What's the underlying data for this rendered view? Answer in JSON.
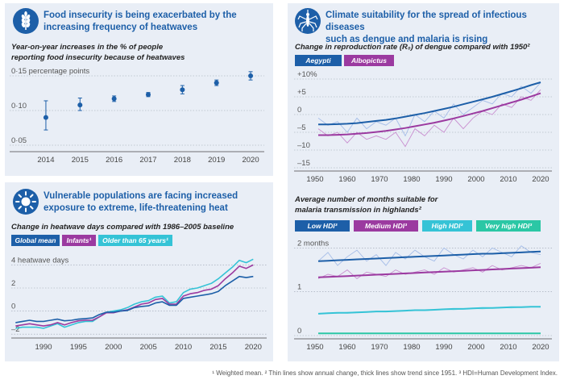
{
  "panels": {
    "food": {
      "title_l1": "Food insecurity is being exacerbated by the",
      "title_l2": "increasing frequency of heatwaves",
      "sub_l1": "Year-on-year increases in the % of people",
      "sub_l2": "reporting food insecurity because of heatwaves",
      "icon": "wheat-icon"
    },
    "climate": {
      "title_l1": "Climate suitability for the spread of infectious diseases",
      "title_l2": "such as dengue and malaria is rising",
      "sub": "Change in reproduction rate (R₀) of dengue compared with 1950²",
      "sub2_l1": "Average number of months suitable for",
      "sub2_l2": "malaria transmission in highlands²",
      "icon": "mosquito-icon"
    },
    "heat": {
      "title_l1": "Vulnerable populations are facing increased",
      "title_l2": "exposure to extreme, life-threatening heat",
      "sub": "Change in heatwave days compared with 1986–2005 baseline",
      "icon": "sun-icon"
    }
  },
  "footnote": "¹ Weighted mean. ² Thin lines show annual change, thick lines show trend since 1951. ³ HDI=Human Development Index.",
  "colors": {
    "dark_blue": "#1d5fa8",
    "purple": "#9b3aa0",
    "cyan": "#35c3d6",
    "teal": "#2bc7a5",
    "light_purple": "#c98fd0",
    "light_blue": "#a5bde8"
  },
  "chart_data": [
    {
      "type": "scatter",
      "name": "food-insecurity",
      "x": [
        2014,
        2015,
        2016,
        2017,
        2018,
        2019,
        2020
      ],
      "y": [
        0.09,
        0.108,
        0.117,
        0.123,
        0.13,
        0.14,
        0.15
      ],
      "err_low": [
        0.072,
        0.1,
        0.113,
        0.12,
        0.124,
        0.136,
        0.144
      ],
      "err_high": [
        0.114,
        0.118,
        0.121,
        0.126,
        0.136,
        0.144,
        0.156
      ],
      "ylim": [
        0.05,
        0.15
      ],
      "ytick_labels": [
        "0·15 percentage points",
        "0·10",
        "0·05"
      ],
      "yticks": [
        0.15,
        0.1,
        0.05
      ],
      "xtick_labels": [
        "2014",
        "2015",
        "2016",
        "2017",
        "2018",
        "2019",
        "2020"
      ]
    },
    {
      "type": "line",
      "name": "heatwave-days",
      "x": [
        1986,
        1987,
        1988,
        1989,
        1990,
        1991,
        1992,
        1993,
        1994,
        1995,
        1996,
        1997,
        1998,
        1999,
        2000,
        2001,
        2002,
        2003,
        2004,
        2005,
        2006,
        2007,
        2008,
        2009,
        2010,
        2011,
        2012,
        2013,
        2014,
        2015,
        2016,
        2017,
        2018,
        2019,
        2020
      ],
      "legend": [
        "Global mean",
        "Infants¹",
        "Older than 65 years¹"
      ],
      "series": [
        {
          "name": "Global mean",
          "color": "#1d5fa8",
          "values": [
            -1.0,
            -0.9,
            -0.8,
            -0.9,
            -0.9,
            -0.8,
            -0.7,
            -0.85,
            -0.8,
            -0.7,
            -0.65,
            -0.6,
            -0.3,
            -0.1,
            -0.1,
            0.0,
            0.05,
            0.3,
            0.4,
            0.45,
            0.7,
            0.8,
            0.5,
            0.5,
            1.1,
            1.2,
            1.3,
            1.4,
            1.5,
            1.7,
            2.2,
            2.6,
            3.0,
            2.9,
            3.0
          ]
        },
        {
          "name": "Infants¹",
          "color": "#9b3aa0",
          "values": [
            -1.3,
            -1.2,
            -1.1,
            -1.2,
            -1.3,
            -1.2,
            -1.0,
            -1.2,
            -1.0,
            -0.85,
            -0.8,
            -0.8,
            -0.5,
            -0.15,
            -0.15,
            0.0,
            0.1,
            0.35,
            0.6,
            0.7,
            1.0,
            1.1,
            0.6,
            0.6,
            1.3,
            1.5,
            1.6,
            1.8,
            1.9,
            2.2,
            2.8,
            3.3,
            3.9,
            3.7,
            4.0
          ]
        },
        {
          "name": "Older than 65 years¹",
          "color": "#35c3d6",
          "values": [
            -1.5,
            -1.4,
            -1.4,
            -1.4,
            -1.5,
            -1.3,
            -1.1,
            -1.4,
            -1.2,
            -1.0,
            -0.9,
            -0.9,
            -0.5,
            -0.1,
            0.0,
            0.1,
            0.3,
            0.6,
            0.8,
            0.9,
            1.2,
            1.3,
            0.7,
            0.8,
            1.6,
            1.9,
            2.0,
            2.2,
            2.4,
            2.8,
            3.3,
            3.8,
            4.4,
            4.2,
            4.5
          ]
        }
      ],
      "ylim": [
        -2,
        4.5
      ],
      "yticks": [
        4,
        2,
        0,
        -2
      ],
      "ytick_labels": [
        "4 heatwave days",
        "2",
        "0",
        "–2"
      ],
      "xticks": [
        1990,
        1995,
        2000,
        2005,
        2010,
        2015,
        2020
      ],
      "xtick_labels": [
        "1990",
        "1995",
        "2000",
        "2005",
        "2010",
        "2015",
        "2020"
      ]
    },
    {
      "type": "line",
      "name": "dengue-r0",
      "x": [
        1951,
        1954,
        1957,
        1960,
        1963,
        1966,
        1969,
        1972,
        1975,
        1978,
        1981,
        1984,
        1987,
        1990,
        1993,
        1996,
        1999,
        2002,
        2005,
        2008,
        2011,
        2014,
        2017,
        2020
      ],
      "legend": [
        "Aegypti",
        "Albopictus"
      ],
      "series": [
        {
          "name": "Aegypti",
          "color": "#1d5fa8",
          "annual": [
            -1,
            -3,
            -2,
            -5,
            -1,
            -4,
            -2,
            -3,
            -1,
            -6,
            0,
            -2,
            1,
            -1,
            3,
            0,
            2,
            4,
            3,
            6,
            5,
            8,
            6,
            9
          ],
          "trend": [
            -2.8,
            -2.8,
            -2.7,
            -2.6,
            -2.4,
            -2.1,
            -1.8,
            -1.5,
            -1.1,
            -0.6,
            -0.1,
            0.4,
            1.0,
            1.6,
            2.2,
            2.9,
            3.6,
            4.3,
            5.0,
            5.8,
            6.6,
            7.4,
            8.3,
            9.1
          ]
        },
        {
          "name": "Albopictus",
          "color": "#9b3aa0",
          "annual": [
            -4,
            -6,
            -5,
            -8,
            -5,
            -7,
            -6,
            -7,
            -5,
            -9,
            -4,
            -6,
            -3,
            -5,
            -1,
            -4,
            -1,
            1,
            0,
            3,
            2,
            5,
            4,
            7
          ],
          "trend": [
            -5.8,
            -5.8,
            -5.7,
            -5.6,
            -5.4,
            -5.2,
            -4.9,
            -4.6,
            -4.2,
            -3.8,
            -3.3,
            -2.8,
            -2.3,
            -1.7,
            -1.1,
            -0.4,
            0.3,
            1.0,
            1.8,
            2.6,
            3.4,
            4.2,
            5.1,
            6.0
          ]
        }
      ],
      "ylim": [
        -15,
        10
      ],
      "yticks": [
        10,
        5,
        0,
        -5,
        -10,
        -15
      ],
      "ytick_labels": [
        "+10%",
        "+5",
        "0",
        "–5",
        "–10",
        "–15"
      ],
      "xticks": [
        1950,
        1960,
        1970,
        1980,
        1990,
        2000,
        2010,
        2020
      ],
      "xtick_labels": [
        "1950",
        "1960",
        "1970",
        "1980",
        "1990",
        "2000",
        "2010",
        "2020"
      ]
    },
    {
      "type": "line",
      "name": "malaria-months",
      "x": [
        1951,
        1954,
        1957,
        1960,
        1963,
        1966,
        1969,
        1972,
        1975,
        1978,
        1981,
        1984,
        1987,
        1990,
        1993,
        1996,
        1999,
        2002,
        2005,
        2008,
        2011,
        2014,
        2017,
        2020
      ],
      "legend": [
        "Low HDI³",
        "Medium HDI³",
        "High HDI³",
        "Very high HDI³"
      ],
      "series": [
        {
          "name": "Low HDI³",
          "color": "#1d5fa8",
          "annual": [
            1.7,
            1.9,
            1.6,
            1.8,
            1.95,
            1.7,
            1.85,
            1.6,
            1.9,
            1.75,
            1.95,
            1.8,
            1.7,
            2.0,
            1.85,
            1.75,
            1.95,
            1.8,
            2.0,
            1.9,
            1.8,
            2.05,
            1.9,
            1.85
          ],
          "trend": [
            1.7,
            1.71,
            1.72,
            1.73,
            1.74,
            1.75,
            1.76,
            1.77,
            1.78,
            1.79,
            1.8,
            1.81,
            1.82,
            1.83,
            1.84,
            1.85,
            1.86,
            1.87,
            1.87,
            1.88,
            1.89,
            1.9,
            1.91,
            1.92
          ]
        },
        {
          "name": "Medium HDI³",
          "color": "#9b3aa0",
          "annual": [
            1.3,
            1.4,
            1.35,
            1.5,
            1.3,
            1.45,
            1.4,
            1.35,
            1.5,
            1.4,
            1.45,
            1.5,
            1.4,
            1.55,
            1.45,
            1.5,
            1.55,
            1.45,
            1.6,
            1.5,
            1.55,
            1.6,
            1.55,
            1.65
          ],
          "trend": [
            1.33,
            1.34,
            1.35,
            1.36,
            1.37,
            1.38,
            1.39,
            1.4,
            1.41,
            1.42,
            1.43,
            1.44,
            1.45,
            1.46,
            1.47,
            1.48,
            1.49,
            1.5,
            1.51,
            1.52,
            1.53,
            1.54,
            1.55,
            1.56
          ]
        },
        {
          "name": "High HDI³",
          "color": "#35c3d6",
          "annual": [
            0.5,
            0.52,
            0.51,
            0.53,
            0.54,
            0.53,
            0.55,
            0.56,
            0.55,
            0.57,
            0.58,
            0.57,
            0.59,
            0.6,
            0.59,
            0.61,
            0.62,
            0.61,
            0.63,
            0.64,
            0.63,
            0.65,
            0.66,
            0.65
          ],
          "trend": [
            0.5,
            0.51,
            0.52,
            0.52,
            0.53,
            0.54,
            0.55,
            0.55,
            0.56,
            0.57,
            0.58,
            0.58,
            0.59,
            0.6,
            0.61,
            0.61,
            0.62,
            0.63,
            0.63,
            0.64,
            0.65,
            0.65,
            0.66,
            0.66
          ]
        },
        {
          "name": "Very high HDI³",
          "color": "#2bc7a5",
          "annual": [
            0.05,
            0.05,
            0.05,
            0.05,
            0.05,
            0.05,
            0.05,
            0.05,
            0.05,
            0.05,
            0.05,
            0.05,
            0.05,
            0.05,
            0.05,
            0.05,
            0.05,
            0.05,
            0.05,
            0.05,
            0.05,
            0.05,
            0.05,
            0.05
          ],
          "trend": [
            0.05,
            0.05,
            0.05,
            0.05,
            0.05,
            0.05,
            0.05,
            0.05,
            0.05,
            0.05,
            0.05,
            0.05,
            0.05,
            0.05,
            0.05,
            0.05,
            0.05,
            0.05,
            0.05,
            0.05,
            0.05,
            0.05,
            0.05,
            0.05
          ]
        }
      ],
      "ylim": [
        0,
        2.1
      ],
      "yticks": [
        2,
        1,
        0
      ],
      "ytick_labels": [
        "2 months",
        "1",
        "0"
      ],
      "xticks": [
        1950,
        1960,
        1970,
        1980,
        1990,
        2000,
        2010,
        2020
      ],
      "xtick_labels": [
        "1950",
        "1960",
        "1970",
        "1980",
        "1990",
        "2000",
        "2010",
        "2020"
      ]
    }
  ]
}
